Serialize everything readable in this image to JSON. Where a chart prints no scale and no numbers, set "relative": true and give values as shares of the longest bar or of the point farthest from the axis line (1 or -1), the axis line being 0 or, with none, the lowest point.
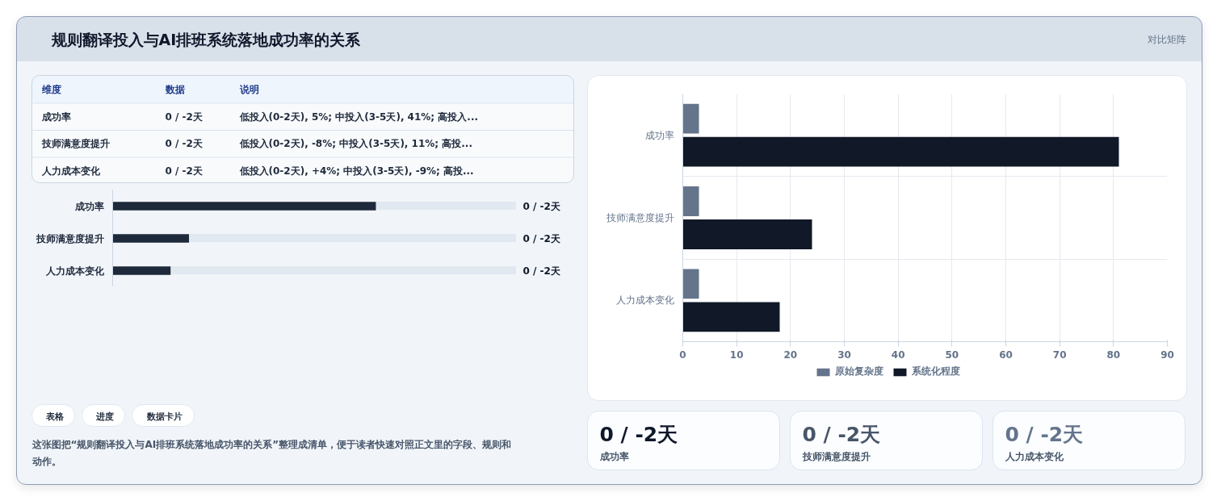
{
  "chart_data": [
    {
      "type": "other",
      "title": "规则翻译投入与AI排班系统落地成功率的关系",
      "subtitle": "对比矩阵"
    },
    {
      "type": "other",
      "categories": [
        "维度",
        "数据",
        "说明"
      ],
      "annotations": [
        "成功率",
        "0 / -2天",
        "低投入(0-2天), 5%; 中投入(3-5天), 41%; 高投入...",
        "技师满意度提升",
        "0 / -2天",
        "低投入(0-2天), -8%; 中投入(3-5天), 11%; 高投...",
        "人力成本变化",
        "0 / -2天",
        "低投入(0-2天), +4%; 中投入(3-5天), -9%; 高投..."
      ]
    },
    {
      "type": "bar",
      "orientation": "horizontal",
      "relative": true,
      "categories": [
        "成功率",
        "技师满意度提升",
        "人力成本变化"
      ],
      "values": [
        1,
        0.29,
        0.22
      ],
      "color": "#1e293b"
    },
    {
      "type": "other",
      "annotations": [
        "0 / -2天",
        "0 / -2天",
        "0 / -2天"
      ]
    },
    {
      "type": "other",
      "categories": [
        "表格",
        "进度",
        "数据卡片"
      ],
      "annotations": [
        "这张图把“规则翻译投入与AI排班系统落地成功率的关系”整理成清单，便于读者快速对照正文里的字段、规则和动作。"
      ]
    },
    {
      "type": "bar",
      "orientation": "horizontal",
      "categories": [
        "成功率",
        "技师满意度提升",
        "人力成本变化"
      ],
      "series": [
        {
          "name": "原始复杂度",
          "color": "#64748b",
          "values": [
            3,
            3,
            3
          ]
        },
        {
          "name": "系统化程度",
          "color": "#111827",
          "values": [
            81,
            24,
            18
          ]
        }
      ],
      "xlim": [
        0,
        90
      ],
      "xticks": [
        0,
        10,
        20,
        30,
        40,
        50,
        60,
        70,
        80,
        90
      ],
      "grid": true,
      "legend": "bottom"
    },
    {
      "type": "other",
      "categories": [
        "成功率",
        "技师满意度提升",
        "人力成本变化"
      ],
      "annotations": [
        "0 / -2天",
        "0 / -2天",
        "0 / -2天"
      ]
    }
  ]
}
